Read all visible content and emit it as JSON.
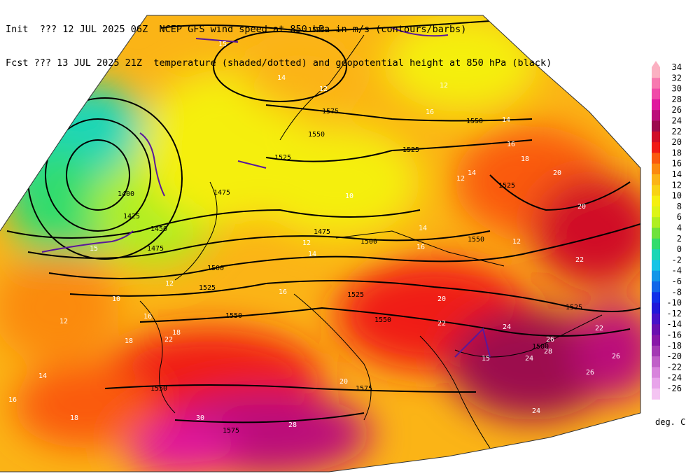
{
  "header": {
    "line1": "Init  ??? 12 JUL 2025 06Z  NCEP GFS wind speed at 850 hPa in m/s (contours/barbs)",
    "line2": "Fcst ??? 13 JUL 2025 21Z  temperature (shaded/dotted) and geopotential height at 850 hPa (black)"
  },
  "legend": {
    "units": "deg. C",
    "entries": [
      {
        "label": "34",
        "color": "#fbb1c2"
      },
      {
        "label": "32",
        "color": "#f779b0"
      },
      {
        "label": "30",
        "color": "#f04aa8"
      },
      {
        "label": "28",
        "color": "#e0189e"
      },
      {
        "label": "26",
        "color": "#bb0e7a"
      },
      {
        "label": "24",
        "color": "#9c0a4e"
      },
      {
        "label": "22",
        "color": "#d00d28"
      },
      {
        "label": "20",
        "color": "#f01a16"
      },
      {
        "label": "18",
        "color": "#fa5a10"
      },
      {
        "label": "16",
        "color": "#fb8a10"
      },
      {
        "label": "14",
        "color": "#fbb416"
      },
      {
        "label": "12",
        "color": "#f8d214"
      },
      {
        "label": "10",
        "color": "#f5ef10"
      },
      {
        "label": "8",
        "color": "#ddf418"
      },
      {
        "label": "6",
        "color": "#b0ee22"
      },
      {
        "label": "4",
        "color": "#6fe23c"
      },
      {
        "label": "2",
        "color": "#32dc6c"
      },
      {
        "label": "0",
        "color": "#1ad6b6"
      },
      {
        "label": "-2",
        "color": "#16c4e6"
      },
      {
        "label": "-4",
        "color": "#1296e8"
      },
      {
        "label": "-6",
        "color": "#1266e8"
      },
      {
        "label": "-8",
        "color": "#1230e8"
      },
      {
        "label": "-10",
        "color": "#2218d8"
      },
      {
        "label": "-12",
        "color": "#4812c8"
      },
      {
        "label": "-14",
        "color": "#6a10b0"
      },
      {
        "label": "-16",
        "color": "#8818a8"
      },
      {
        "label": "-18",
        "color": "#a43ab4"
      },
      {
        "label": "-20",
        "color": "#c060c8"
      },
      {
        "label": "-22",
        "color": "#d884dc"
      },
      {
        "label": "-24",
        "color": "#e8a4ea"
      },
      {
        "label": "-26",
        "color": "#f4c4f2"
      }
    ]
  },
  "height_labels": [
    {
      "text": "1575"
    },
    {
      "text": "1575"
    },
    {
      "text": "1550"
    },
    {
      "text": "1550"
    },
    {
      "text": "1525"
    },
    {
      "text": "1525"
    },
    {
      "text": "1525"
    },
    {
      "text": "1500"
    },
    {
      "text": "1475"
    },
    {
      "text": "1475"
    },
    {
      "text": "1475"
    },
    {
      "text": "1450"
    },
    {
      "text": "1425"
    },
    {
      "text": "1400"
    },
    {
      "text": "1500"
    },
    {
      "text": "1525"
    },
    {
      "text": "1550"
    },
    {
      "text": "1550"
    },
    {
      "text": "1550"
    },
    {
      "text": "1525"
    },
    {
      "text": "1525"
    },
    {
      "text": "1500"
    },
    {
      "text": "1550"
    },
    {
      "text": "1575"
    },
    {
      "text": "1575"
    }
  ],
  "wind_labels": [
    {
      "text": "15"
    },
    {
      "text": "14"
    },
    {
      "text": "12"
    },
    {
      "text": "12"
    },
    {
      "text": "16"
    },
    {
      "text": "14"
    },
    {
      "text": "16"
    },
    {
      "text": "18"
    },
    {
      "text": "12"
    },
    {
      "text": "14"
    },
    {
      "text": "10"
    },
    {
      "text": "14"
    },
    {
      "text": "12"
    },
    {
      "text": "14"
    },
    {
      "text": "16"
    },
    {
      "text": "12"
    },
    {
      "text": "12"
    },
    {
      "text": "16"
    },
    {
      "text": "15"
    },
    {
      "text": "15"
    },
    {
      "text": "10"
    },
    {
      "text": "12"
    },
    {
      "text": "18"
    },
    {
      "text": "16"
    },
    {
      "text": "22"
    },
    {
      "text": "20"
    },
    {
      "text": "22"
    },
    {
      "text": "24"
    },
    {
      "text": "26"
    },
    {
      "text": "28"
    },
    {
      "text": "24"
    },
    {
      "text": "22"
    },
    {
      "text": "18"
    },
    {
      "text": "20"
    },
    {
      "text": "14"
    },
    {
      "text": "16"
    },
    {
      "text": "18"
    },
    {
      "text": "20"
    },
    {
      "text": "22"
    },
    {
      "text": "26"
    },
    {
      "text": "30"
    },
    {
      "text": "28"
    },
    {
      "text": "24"
    },
    {
      "text": "26"
    },
    {
      "text": "20"
    }
  ]
}
